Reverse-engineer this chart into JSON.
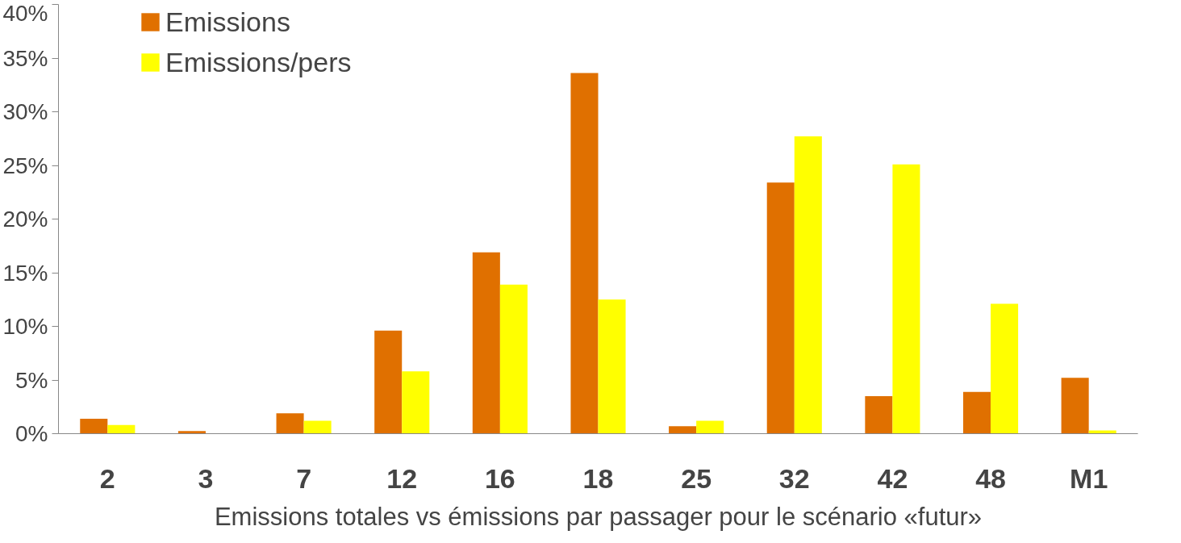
{
  "chart_data": {
    "type": "bar",
    "xlabel": "Emissions totales vs émissions par passager pour le scénario «futur»",
    "categories": [
      "2",
      "3",
      "7",
      "12",
      "16",
      "18",
      "25",
      "32",
      "42",
      "48",
      "M1"
    ],
    "series": [
      {
        "name": "Emissions",
        "color": "#e07000",
        "values": [
          1.4,
          0.25,
          1.9,
          9.6,
          16.9,
          33.6,
          0.7,
          23.4,
          3.5,
          3.9,
          5.2
        ]
      },
      {
        "name": "Emissions/pers",
        "color": "#ffff00",
        "values": [
          0.8,
          null,
          1.2,
          5.8,
          13.9,
          12.5,
          1.2,
          27.7,
          25.1,
          12.1,
          0.3
        ]
      }
    ],
    "ylim": [
      0,
      40
    ],
    "yticks": [
      {
        "value": 0,
        "label": "0%"
      },
      {
        "value": 5,
        "label": "5%"
      },
      {
        "value": 10,
        "label": "10%"
      },
      {
        "value": 15,
        "label": "15%"
      },
      {
        "value": 20,
        "label": "20%"
      },
      {
        "value": 25,
        "label": "25%"
      },
      {
        "value": 30,
        "label": "30%"
      },
      {
        "value": 35,
        "label": "35%"
      },
      {
        "value": 40,
        "label": "40%"
      }
    ],
    "grid": false,
    "legend": "top left"
  }
}
